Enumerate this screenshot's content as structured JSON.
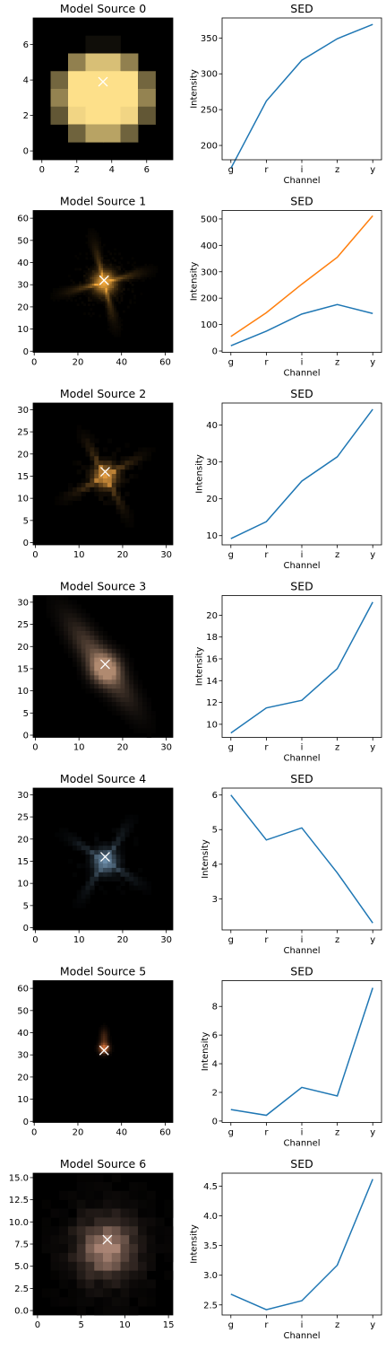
{
  "chart_data": [
    {
      "type": "image",
      "title": "Model Source 0",
      "xlim": [
        -0.5,
        7.5
      ],
      "ylim": [
        7.5,
        -0.5
      ],
      "xticks": [
        0,
        2,
        4,
        6
      ],
      "yticks": [
        0,
        2,
        4,
        6
      ],
      "ytick_labels": [
        "0",
        "2",
        "4",
        "6"
      ],
      "center": [
        3.5,
        3.9
      ],
      "color": "#fde08a",
      "morph": "blob"
    },
    {
      "type": "line",
      "title": "SED",
      "xlabel": "Channel",
      "ylabel": "Intensity",
      "categories": [
        "g",
        "r",
        "i",
        "z",
        "y"
      ],
      "ylim": [
        180,
        378
      ],
      "yticks": [
        200,
        250,
        300,
        350
      ],
      "ytick_labels": [
        "200",
        "250",
        "300",
        "350"
      ],
      "series": [
        {
          "values": [
            168,
            262,
            319,
            349,
            369
          ]
        }
      ]
    },
    {
      "type": "image",
      "title": "Model Source 1",
      "xlim": [
        -0.5,
        63.5
      ],
      "ylim": [
        63.5,
        -0.5
      ],
      "xticks": [
        0,
        20,
        40,
        60
      ],
      "yticks": [
        0,
        10,
        20,
        30,
        40,
        50,
        60
      ],
      "ytick_labels": [
        "0",
        "10",
        "20",
        "30",
        "40",
        "50",
        "60"
      ],
      "center": [
        32,
        32
      ],
      "color": "#f2a83c",
      "morph": "spiky"
    },
    {
      "type": "line",
      "title": "SED",
      "xlabel": "Channel",
      "ylabel": "Intensity",
      "categories": [
        "g",
        "r",
        "i",
        "z",
        "y"
      ],
      "ylim": [
        -5,
        532
      ],
      "yticks": [
        0,
        100,
        200,
        300,
        400,
        500
      ],
      "ytick_labels": [
        "0",
        "100",
        "200",
        "300",
        "400",
        "500"
      ],
      "series": [
        {
          "values": [
            20,
            75,
            140,
            176,
            142
          ]
        },
        {
          "values": [
            55,
            145,
            253,
            355,
            512
          ]
        }
      ]
    },
    {
      "type": "image",
      "title": "Model Source 2",
      "xlim": [
        -0.5,
        31.5
      ],
      "ylim": [
        31.5,
        -0.5
      ],
      "xticks": [
        0,
        10,
        20,
        30
      ],
      "yticks": [
        0,
        5,
        10,
        15,
        20,
        25,
        30
      ],
      "ytick_labels": [
        "0",
        "5",
        "10",
        "15",
        "20",
        "25",
        "30"
      ],
      "center": [
        16,
        16
      ],
      "color": "#e09a40",
      "morph": "spiky"
    },
    {
      "type": "line",
      "title": "SED",
      "xlabel": "Channel",
      "ylabel": "Intensity",
      "categories": [
        "g",
        "r",
        "i",
        "z",
        "y"
      ],
      "ylim": [
        7.5,
        46
      ],
      "yticks": [
        10,
        20,
        30,
        40
      ],
      "ytick_labels": [
        "10",
        "20",
        "30",
        "40"
      ],
      "series": [
        {
          "values": [
            9.2,
            13.8,
            24.8,
            31.4,
            44.3
          ]
        }
      ]
    },
    {
      "type": "image",
      "title": "Model Source 3",
      "xlim": [
        -0.5,
        31.5
      ],
      "ylim": [
        31.5,
        -0.5
      ],
      "xticks": [
        0,
        10,
        20,
        30
      ],
      "yticks": [
        0,
        5,
        10,
        15,
        20,
        25,
        30
      ],
      "ytick_labels": [
        "0",
        "5",
        "10",
        "15",
        "20",
        "25",
        "30"
      ],
      "center": [
        16,
        16
      ],
      "color": "#b08a70",
      "morph": "stream"
    },
    {
      "type": "line",
      "title": "SED",
      "xlabel": "Channel",
      "ylabel": "Intensity",
      "categories": [
        "g",
        "r",
        "i",
        "z",
        "y"
      ],
      "ylim": [
        8.8,
        21.8
      ],
      "yticks": [
        10,
        12,
        14,
        16,
        18,
        20
      ],
      "ytick_labels": [
        "10",
        "12",
        "14",
        "16",
        "18",
        "20"
      ],
      "series": [
        {
          "values": [
            9.2,
            11.5,
            12.2,
            15.1,
            21.2
          ]
        }
      ]
    },
    {
      "type": "image",
      "title": "Model Source 4",
      "xlim": [
        -0.5,
        31.5
      ],
      "ylim": [
        31.5,
        -0.5
      ],
      "xticks": [
        0,
        10,
        20,
        30
      ],
      "yticks": [
        0,
        5,
        10,
        15,
        20,
        25,
        30
      ],
      "ytick_labels": [
        "0",
        "5",
        "10",
        "15",
        "20",
        "25",
        "30"
      ],
      "center": [
        16,
        16
      ],
      "color": "#6d8eaa",
      "morph": "spiky"
    },
    {
      "type": "line",
      "title": "SED",
      "xlabel": "Channel",
      "ylabel": "Intensity",
      "categories": [
        "g",
        "r",
        "i",
        "z",
        "y"
      ],
      "ylim": [
        2.1,
        6.2
      ],
      "yticks": [
        3,
        4,
        5,
        6
      ],
      "ytick_labels": [
        "3",
        "4",
        "5",
        "6"
      ],
      "series": [
        {
          "values": [
            6.0,
            4.7,
            5.05,
            3.75,
            2.3
          ]
        }
      ]
    },
    {
      "type": "image",
      "title": "Model Source 5",
      "xlim": [
        -0.5,
        63.5
      ],
      "ylim": [
        63.5,
        -0.5
      ],
      "xticks": [
        0,
        20,
        40,
        60
      ],
      "yticks": [
        0,
        10,
        20,
        30,
        40,
        50,
        60
      ],
      "ytick_labels": [
        "0",
        "10",
        "20",
        "30",
        "40",
        "50",
        "60"
      ],
      "center": [
        32,
        32
      ],
      "color": "#d0703a",
      "morph": "small"
    },
    {
      "type": "line",
      "title": "SED",
      "xlabel": "Channel",
      "ylabel": "Intensity",
      "categories": [
        "g",
        "r",
        "i",
        "z",
        "y"
      ],
      "ylim": [
        -0.1,
        9.8
      ],
      "yticks": [
        0,
        2,
        4,
        6,
        8
      ],
      "ytick_labels": [
        "0",
        "2",
        "4",
        "6",
        "8"
      ],
      "series": [
        {
          "values": [
            0.8,
            0.4,
            2.35,
            1.75,
            9.3
          ]
        }
      ]
    },
    {
      "type": "image",
      "title": "Model Source 6",
      "xlim": [
        -0.5,
        15.5
      ],
      "ylim": [
        15.5,
        -0.5
      ],
      "xticks": [
        0,
        5,
        10,
        15
      ],
      "yticks": [
        0,
        2.5,
        5,
        7.5,
        10,
        12.5,
        15
      ],
      "ytick_labels": [
        "0.0",
        "2.5",
        "5.0",
        "7.5",
        "10.0",
        "12.5",
        "15.0"
      ],
      "center": [
        8,
        8
      ],
      "color": "#a98474",
      "morph": "patchy"
    },
    {
      "type": "line",
      "title": "SED",
      "xlabel": "Channel",
      "ylabel": "Intensity",
      "categories": [
        "g",
        "r",
        "i",
        "z",
        "y"
      ],
      "ylim": [
        2.33,
        4.72
      ],
      "yticks": [
        2.5,
        3.0,
        3.5,
        4.0,
        4.5
      ],
      "ytick_labels": [
        "2.5",
        "3.0",
        "3.5",
        "4.0",
        "4.5"
      ],
      "series": [
        {
          "values": [
            2.68,
            2.42,
            2.57,
            3.17,
            4.62
          ]
        }
      ]
    }
  ],
  "series_colors": [
    "#1f77b4",
    "#ff7f0e"
  ],
  "marker": {
    "symbol": "x",
    "color": "#ffffff"
  }
}
